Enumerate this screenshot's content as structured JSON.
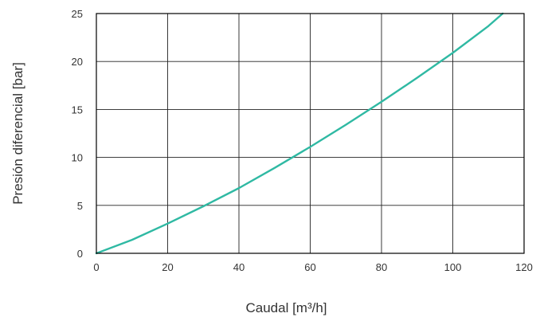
{
  "chart_data": {
    "type": "line",
    "title": "",
    "xlabel": "Caudal [m³/h]",
    "ylabel": "Presión diferencial [bar]",
    "xlim": [
      0,
      120
    ],
    "ylim": [
      0,
      25
    ],
    "xticks": [
      "0",
      "20",
      "40",
      "60",
      "80",
      "100",
      "120"
    ],
    "yticks": [
      "0",
      "5",
      "10",
      "15",
      "20",
      "25"
    ],
    "grid": true,
    "series": [
      {
        "color": "#2fb9a3",
        "x": [
          0,
          10,
          20,
          30,
          40,
          50,
          60,
          70,
          80,
          90,
          100,
          110,
          114
        ],
        "y": [
          0,
          1.4,
          3.1,
          4.9,
          6.8,
          8.9,
          11.1,
          13.4,
          15.8,
          18.3,
          20.9,
          23.7,
          25
        ]
      }
    ]
  }
}
